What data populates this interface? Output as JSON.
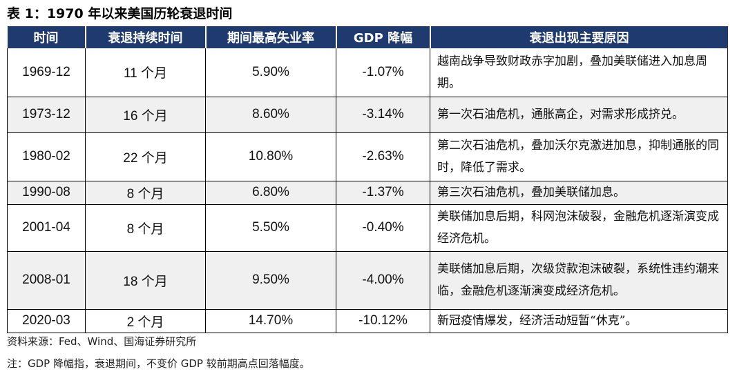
{
  "title": "表 1：1970 年以来美国历轮衰退时间",
  "table": {
    "headers": [
      "时间",
      "衰退持续时间",
      "期间最高失业率",
      "GDP 降幅",
      "衰退出现主要原因"
    ],
    "rows": [
      [
        "1969-12",
        "11 个月",
        "5.90%",
        "-1.07%",
        "越南战争导致财政赤字加剧，叠加美联储进入加息周期。"
      ],
      [
        "1973-12",
        "16 个月",
        "8.60%",
        "-3.14%",
        "第一次石油危机，通胀高企，对需求形成挤兑。"
      ],
      [
        "1980-02",
        "22 个月",
        "10.80%",
        "-2.63%",
        "第二次石油危机，叠加沃尔克激进加息，抑制通胀的同时，降低了需求。"
      ],
      [
        "1990-08",
        "8 个月",
        "6.80%",
        "-1.37%",
        "第三次石油危机，叠加美联储加息。"
      ],
      [
        "2001-04",
        "8 个月",
        "5.50%",
        "-0.40%",
        "美联储加息后期，科网泡沫破裂，金融危机逐渐演变成经济危机。"
      ],
      [
        "2008-01",
        "18 个月",
        "9.50%",
        "-4.00%",
        "美联储加息后期，次级贷款泡沫破裂，系统性违约潮来临，金融危机逐渐演变成经济危机。"
      ],
      [
        "2020-03",
        "2 个月",
        "14.70%",
        "-10.12%",
        "新冠疫情爆发，经济活动短暂“休克”。"
      ]
    ]
  },
  "source": "资料来源：Fed、Wind、国海证券研究所",
  "note": "注：GDP 降幅指，衰退期间，不变价 GDP 较前期高点回落幅度。"
}
